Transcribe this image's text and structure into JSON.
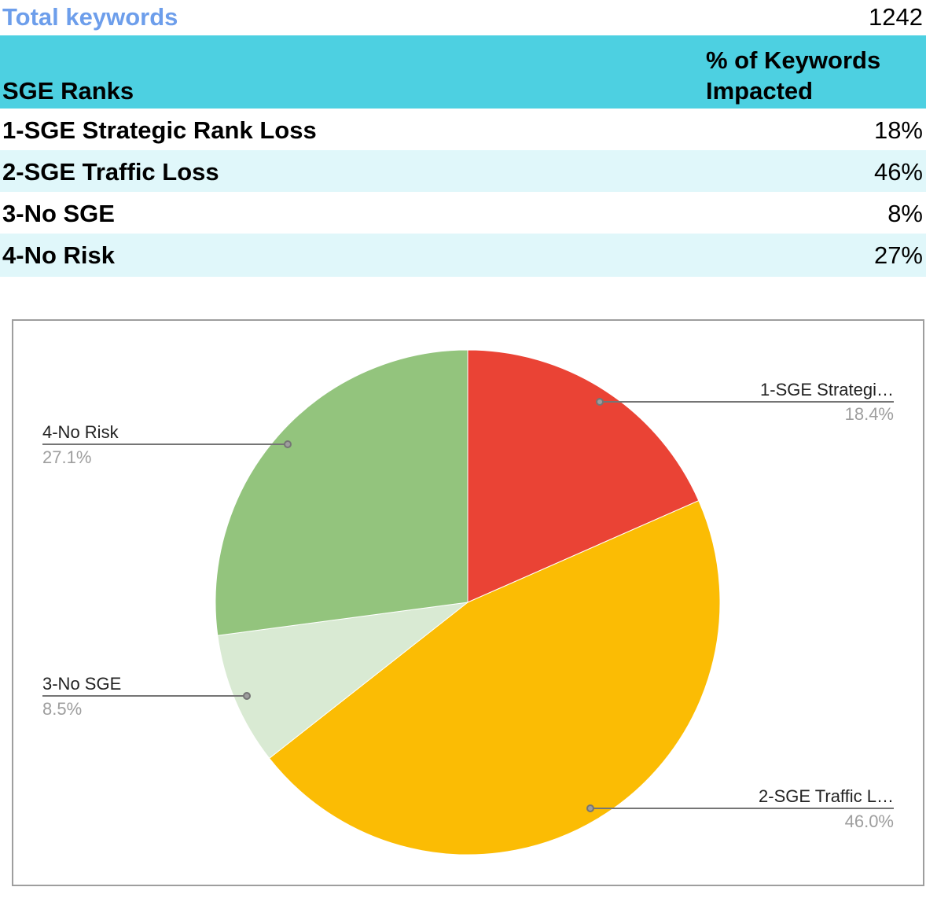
{
  "summary": {
    "total_label": "Total keywords",
    "total_value": "1242"
  },
  "table": {
    "headers": [
      "SGE Ranks",
      "% of Keywords Impacted"
    ],
    "header_right_line1": "% of Keywords",
    "header_right_line2": "Impacted",
    "rows": [
      {
        "rank": "1-SGE Strategic Rank Loss",
        "pct": "18%"
      },
      {
        "rank": "2-SGE Traffic Loss",
        "pct": "46%"
      },
      {
        "rank": "3-No SGE",
        "pct": "8%"
      },
      {
        "rank": "4-No Risk",
        "pct": "27%"
      }
    ]
  },
  "colors": {
    "header_bg": "#4dd0e1",
    "alt_row_bg": "#e0f7fa",
    "total_label": "#6d9eeb",
    "slice_1": "#ea4335",
    "slice_2": "#fbbc04",
    "slice_3": "#d9ead3",
    "slice_4": "#93c47d"
  },
  "chart_labels": {
    "s1_name": "1-SGE Strategi…",
    "s1_pct": "18.4%",
    "s2_name": "2-SGE Traffic L…",
    "s2_pct": "46.0%",
    "s3_name": "3-No SGE",
    "s3_pct": "8.5%",
    "s4_name": "4-No Risk",
    "s4_pct": "27.1%"
  },
  "chart_data": {
    "type": "pie",
    "title": "",
    "categories": [
      "1-SGE Strategic Rank Loss",
      "2-SGE Traffic Loss",
      "3-No SGE",
      "4-No Risk"
    ],
    "values": [
      18.4,
      46.0,
      8.5,
      27.1
    ],
    "value_labels": [
      "18.4%",
      "46.0%",
      "8.5%",
      "27.1%"
    ],
    "colors": [
      "#ea4335",
      "#fbbc04",
      "#d9ead3",
      "#93c47d"
    ],
    "legend": "labeled slices with leader lines",
    "start_angle": "12 o'clock, clockwise"
  }
}
